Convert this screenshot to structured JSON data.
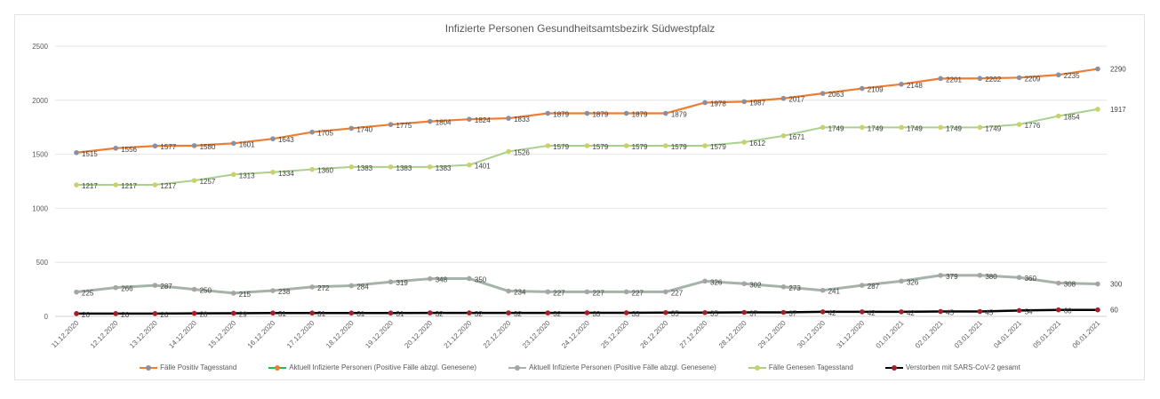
{
  "chart_data": {
    "type": "line",
    "title": "Infizierte Personen Gesundheitsamtsbezirk Südwestpfalz",
    "xlabel": "",
    "ylabel": "",
    "ylim": [
      0,
      2500
    ],
    "yticks": [
      "0",
      "500",
      "1000",
      "1500",
      "2000",
      "2500"
    ],
    "ytick_values": [
      0,
      500,
      1000,
      1500,
      2000,
      2500
    ],
    "grid": true,
    "legend_position": "bottom",
    "categories": [
      "11.12.2020",
      "12.12.2020",
      "13.12.2020",
      "14.12.2020",
      "15.12.2020",
      "16.12.2020",
      "17.12.2020",
      "18.12.2020",
      "19.12.2020",
      "20.12.2020",
      "21.12.2020",
      "22.12.2020",
      "23.12.2020",
      "24.12.2020",
      "25.12.2020",
      "26.12.2020",
      "27.12.2020",
      "28.12.2020",
      "29.12.2020",
      "30.12.2020",
      "31.12.2020",
      "01.01.2021",
      "02.01.2021",
      "03.01.2021",
      "04.01.2021",
      "05.01.2021",
      "06.01.2021"
    ],
    "series": [
      {
        "name": "Fälle Positiv Tagesstand",
        "line_color": "#ed7d31",
        "marker_color": "#8c8fa0",
        "line_width": 2.2,
        "values": [
          1515,
          1556,
          1577,
          1580,
          1601,
          1643,
          1705,
          1740,
          1775,
          1804,
          1824,
          1833,
          1879,
          1879,
          1879,
          1879,
          1978,
          1987,
          2017,
          2063,
          2109,
          2148,
          2201,
          2202,
          2209,
          2235,
          2290
        ]
      },
      {
        "name": "Aktuell Infizierte Personen (Positive Fälle abzgl. Genesene)",
        "line_color": "#1fbf4f",
        "marker_color": "#ed7d31",
        "line_width": 2,
        "legend_only": true,
        "values": []
      },
      {
        "name": "Aktuell Infizierte Personen (Positive Fälle abzgl. Genesene)",
        "line_color": "#a5b3a8",
        "marker_color": "#a5a5a5",
        "line_width": 3,
        "values": [
          225,
          266,
          287,
          250,
          215,
          238,
          272,
          284,
          319,
          348,
          350,
          234,
          227,
          227,
          227,
          227,
          326,
          302,
          273,
          241,
          287,
          326,
          379,
          380,
          360,
          308,
          300
        ]
      },
      {
        "name": "Fälle Genesen Tagesstand",
        "line_color": "#a9d18e",
        "marker_color": "#c9d26a",
        "line_width": 2,
        "values": [
          1217,
          1217,
          1217,
          1257,
          1313,
          1334,
          1360,
          1383,
          1383,
          1383,
          1401,
          1526,
          1579,
          1579,
          1579,
          1579,
          1579,
          1612,
          1671,
          1749,
          1749,
          1749,
          1749,
          1749,
          1776,
          1854,
          1917
        ]
      },
      {
        "name": "Verstorben mit SARS-CoV-2 gesamt",
        "line_color": "#000000",
        "marker_color": "#a31f2b",
        "line_width": 2.5,
        "values": [
          26,
          26,
          26,
          28,
          29,
          31,
          31,
          31,
          31,
          32,
          32,
          32,
          32,
          33,
          33,
          35,
          35,
          37,
          37,
          42,
          42,
          42,
          45,
          45,
          54,
          60,
          60
        ]
      }
    ]
  }
}
